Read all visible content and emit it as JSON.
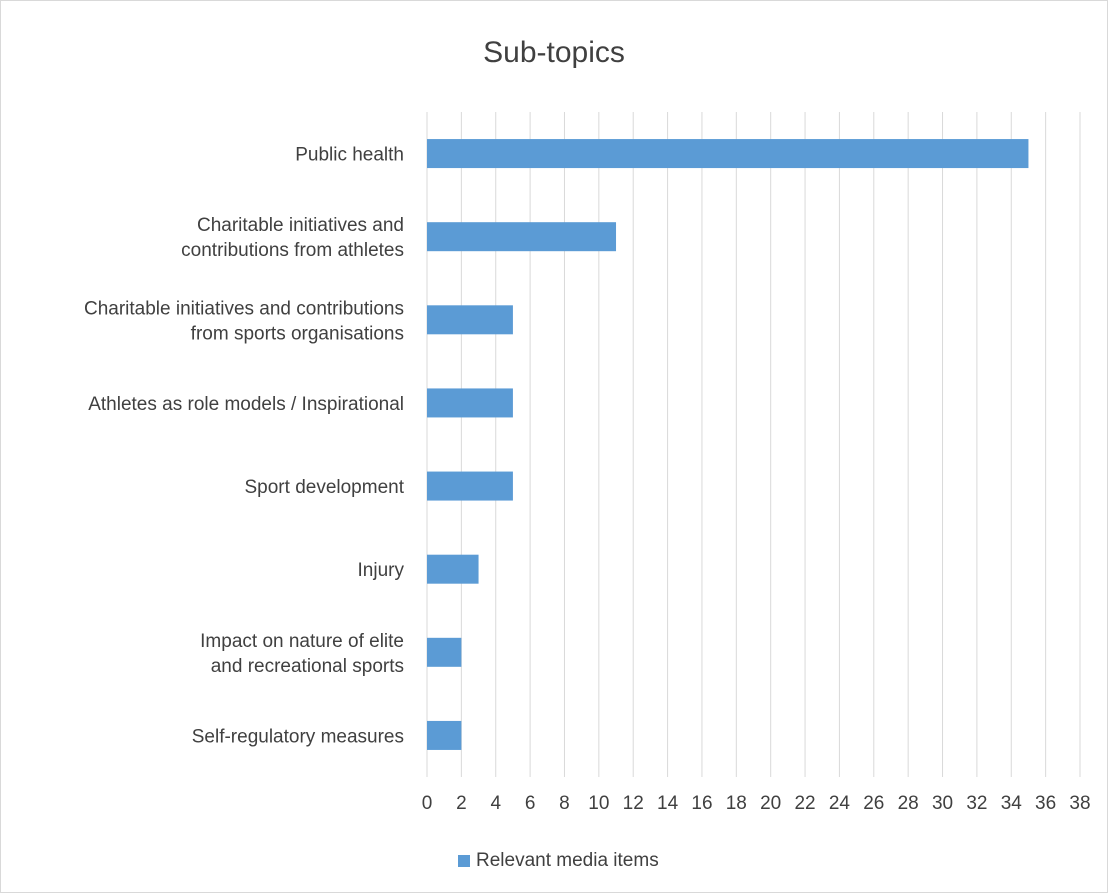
{
  "chart_data": {
    "type": "bar",
    "orientation": "horizontal",
    "title": "Sub-topics",
    "categories": [
      [
        "Public health"
      ],
      [
        "Charitable initiatives and",
        "contributions from athletes"
      ],
      [
        "Charitable initiatives and contributions",
        "from sports organisations"
      ],
      [
        "Athletes as role models / Inspirational"
      ],
      [
        "Sport development"
      ],
      [
        "Injury"
      ],
      [
        "Impact on nature of elite",
        "and recreational sports"
      ],
      [
        "Self-regulatory measures"
      ]
    ],
    "series": [
      {
        "name": "Relevant media items",
        "values": [
          35,
          11,
          5,
          5,
          5,
          3,
          2,
          2
        ]
      }
    ],
    "xlim": [
      0,
      38
    ],
    "xticks": [
      "0",
      "2",
      "4",
      "6",
      "8",
      "10",
      "12",
      "14",
      "16",
      "18",
      "20",
      "22",
      "24",
      "26",
      "28",
      "30",
      "32",
      "34",
      "36",
      "38"
    ],
    "grid": "vertical",
    "legend": "bottom",
    "colors": {
      "bar": "#5b9bd5",
      "grid": "#d9d9d9",
      "text": "#404040"
    }
  }
}
